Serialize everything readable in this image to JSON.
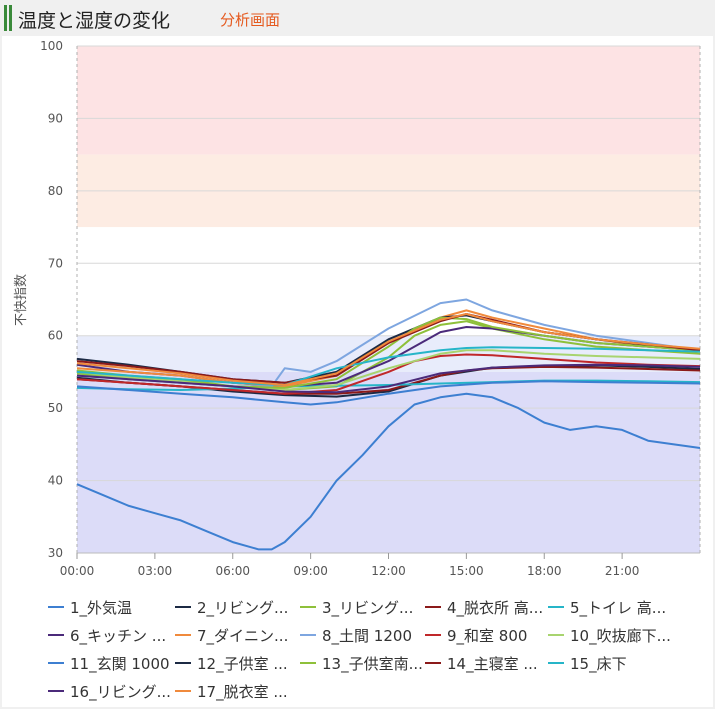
{
  "header": {
    "title": "温度と湿度の変化",
    "subtitle": "分析画面"
  },
  "chart_data": {
    "type": "line",
    "ylabel": "不快指数",
    "ylim": [
      30,
      100
    ],
    "yticks": [
      30,
      40,
      50,
      60,
      70,
      80,
      90,
      100
    ],
    "xlim": [
      0,
      24
    ],
    "xticks": [
      0,
      3,
      6,
      9,
      12,
      15,
      18,
      21
    ],
    "xtick_labels": [
      "00:00",
      "03:00",
      "06:00",
      "09:00",
      "12:00",
      "15:00",
      "18:00",
      "21:00"
    ],
    "grid": true,
    "bands": [
      {
        "from": 85,
        "to": 100,
        "color": "#fde3e4"
      },
      {
        "from": 75,
        "to": 85,
        "color": "#fdece3"
      },
      {
        "from": 55,
        "to": 60,
        "color": "#e8ecfb"
      },
      {
        "from": 30,
        "to": 55,
        "color": "#dcdcf8"
      }
    ],
    "legend_position": "bottom",
    "series": [
      {
        "name": "1_外気温",
        "color": "#3d7fd1",
        "x": [
          0,
          1,
          2,
          3,
          4,
          5,
          6,
          7,
          7.5,
          8,
          9,
          10,
          11,
          12,
          13,
          14,
          15,
          16,
          17,
          18,
          19,
          20,
          21,
          22,
          23,
          24
        ],
        "y": [
          39.5,
          38,
          36.5,
          35.5,
          34.5,
          33,
          31.5,
          30.5,
          30.5,
          31.5,
          35,
          40,
          43.5,
          47.5,
          50.5,
          51.5,
          52,
          51.5,
          50,
          48,
          47,
          47.5,
          47,
          45.5,
          45,
          44.5
        ]
      },
      {
        "name": "2_リビング...",
        "color": "#1c2a44",
        "x": [
          0,
          2,
          4,
          6,
          8,
          10,
          12,
          14,
          16,
          18,
          20,
          22,
          24
        ],
        "y": [
          54.2,
          53.5,
          53,
          52.3,
          51.8,
          51.6,
          52.3,
          54.5,
          55.6,
          55.8,
          55.9,
          55.7,
          55.4
        ]
      },
      {
        "name": "3_リビング...",
        "color": "#8ec03a",
        "x": [
          0,
          2,
          4,
          6,
          8,
          10,
          12,
          13,
          14,
          15,
          16,
          18,
          20,
          22,
          24
        ],
        "y": [
          54.8,
          54,
          53.5,
          53,
          52.5,
          53,
          57,
          60,
          61.5,
          62,
          61,
          59.5,
          58.5,
          58,
          57.5
        ]
      },
      {
        "name": "4_脱衣所 高...",
        "color": "#8b1a1a",
        "x": [
          0,
          2,
          4,
          6,
          8,
          10,
          12,
          13,
          14,
          15,
          16,
          18,
          20,
          22,
          24
        ],
        "y": [
          54,
          53.5,
          53,
          52.5,
          52,
          52,
          52.5,
          53.5,
          54.5,
          55.2,
          55.5,
          55.7,
          55.6,
          55.4,
          55.2
        ]
      },
      {
        "name": "5_トイレ 高...",
        "color": "#26b5c8",
        "x": [
          0,
          2,
          4,
          6,
          8,
          10,
          12,
          14,
          16,
          18,
          20,
          22,
          24
        ],
        "y": [
          52.8,
          52.6,
          52.5,
          52.7,
          53,
          53.1,
          53.2,
          53.4,
          53.6,
          53.8,
          53.8,
          53.7,
          53.6
        ]
      },
      {
        "name": "6_キッチン ...",
        "color": "#4b2a7a",
        "x": [
          0,
          2,
          4,
          6,
          8,
          10,
          12,
          14,
          15,
          16,
          18,
          20,
          22,
          24
        ],
        "y": [
          56,
          55,
          54.5,
          53.5,
          53,
          53.5,
          56.5,
          60.5,
          61.2,
          61,
          60,
          59,
          58.5,
          58
        ]
      },
      {
        "name": "7_ダイニン...",
        "color": "#f08a3c",
        "x": [
          0,
          2,
          4,
          6,
          8,
          10,
          12,
          14,
          15,
          16,
          18,
          20,
          22,
          24
        ],
        "y": [
          55.5,
          55,
          54.5,
          53.5,
          53,
          54.5,
          59,
          62.5,
          63.5,
          62.5,
          61,
          59.5,
          58.5,
          58
        ]
      },
      {
        "name": "8_土間 1200",
        "color": "#7ea6e0",
        "x": [
          0,
          2,
          4,
          6,
          7.5,
          8,
          9,
          10,
          12,
          14,
          15,
          16,
          18,
          20,
          22,
          24
        ],
        "y": [
          54.5,
          54,
          53.5,
          53,
          53,
          55.5,
          55,
          56.5,
          61,
          64.5,
          65,
          63.5,
          61.5,
          60,
          59,
          58
        ]
      },
      {
        "name": "9_和室 800",
        "color": "#c0282a",
        "x": [
          0,
          2,
          4,
          6,
          8,
          10,
          12,
          13,
          14,
          15,
          16,
          18,
          20,
          22,
          24
        ],
        "y": [
          54,
          53.5,
          53,
          52.5,
          52,
          52.5,
          55,
          56.5,
          57.2,
          57.4,
          57.3,
          56.8,
          56.3,
          56,
          55.8
        ]
      },
      {
        "name": "10_吹抜廊下...",
        "color": "#a8d46f",
        "x": [
          0,
          2,
          4,
          6,
          8,
          10,
          12,
          14,
          15,
          16,
          18,
          20,
          22,
          24
        ],
        "y": [
          55,
          54.2,
          53.8,
          53,
          52.5,
          53.2,
          55.5,
          57.5,
          58,
          58,
          57.5,
          57.2,
          57,
          56.8
        ]
      },
      {
        "name": "11_玄関 1000",
        "color": "#3d7fd1",
        "x": [
          0,
          2,
          4,
          6,
          8,
          9,
          10,
          12,
          14,
          16,
          18,
          20,
          22,
          24
        ],
        "y": [
          53,
          52.5,
          52,
          51.5,
          50.8,
          50.5,
          50.8,
          52,
          53,
          53.5,
          53.7,
          53.6,
          53.5,
          53.4
        ]
      },
      {
        "name": "12_子供室 ...",
        "color": "#1c2a44",
        "x": [
          0,
          2,
          4,
          6,
          8,
          10,
          12,
          14,
          15,
          16,
          18,
          20,
          22,
          24
        ],
        "y": [
          56.8,
          56,
          55,
          54,
          53.5,
          55,
          59.5,
          62.5,
          62.8,
          62,
          60.5,
          59.5,
          58.7,
          58
        ]
      },
      {
        "name": "13_子供室南...",
        "color": "#8ec03a",
        "x": [
          0,
          2,
          4,
          6,
          8,
          10,
          12,
          13,
          14,
          15,
          16,
          18,
          20,
          22,
          24
        ],
        "y": [
          55.2,
          54.5,
          54,
          53,
          52.8,
          54,
          58.5,
          61,
          62.5,
          62.3,
          61.2,
          60,
          59,
          58.5,
          58
        ]
      },
      {
        "name": "14_主寝室 ...",
        "color": "#8b1a1a",
        "x": [
          0,
          2,
          4,
          6,
          8,
          10,
          12,
          14,
          15,
          16,
          18,
          20,
          22,
          24
        ],
        "y": [
          56.5,
          55.8,
          55,
          54,
          53.5,
          54.5,
          59,
          62,
          63,
          62.2,
          60.5,
          59.5,
          58.8,
          58
        ]
      },
      {
        "name": "15_床下",
        "color": "#26b5c8",
        "x": [
          0,
          2,
          4,
          6,
          8,
          10,
          12,
          14,
          15,
          16,
          18,
          20,
          22,
          24
        ],
        "y": [
          55,
          54.5,
          54,
          53.5,
          53.2,
          55.5,
          57,
          58,
          58.3,
          58.4,
          58.3,
          58.2,
          58,
          57.8
        ]
      },
      {
        "name": "16_リビング...",
        "color": "#4b2a7a",
        "x": [
          0,
          2,
          4,
          6,
          8,
          10,
          12,
          14,
          16,
          18,
          20,
          22,
          24
        ],
        "y": [
          54.5,
          54,
          53.5,
          53,
          52.3,
          52.2,
          53,
          54.8,
          55.6,
          55.9,
          56,
          55.9,
          55.7
        ]
      },
      {
        "name": "17_脱衣室 ...",
        "color": "#f08a3c",
        "x": [
          0,
          2,
          4,
          6,
          8,
          10,
          12,
          14,
          15,
          16,
          18,
          20,
          22,
          24
        ],
        "y": [
          56.2,
          55.5,
          54.8,
          53.8,
          53.2,
          54.8,
          59.2,
          62.2,
          63,
          62,
          60.5,
          59.5,
          58.8,
          58.2
        ]
      }
    ]
  }
}
